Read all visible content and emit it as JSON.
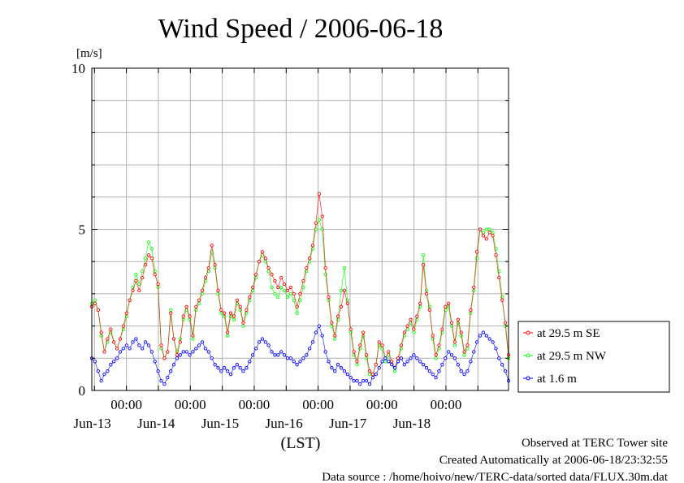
{
  "chart_data": {
    "type": "line",
    "title": "Wind Speed / 2006-06-18",
    "ylabel": "[m/s]",
    "xlabel": "(LST)",
    "ylim": [
      0,
      10
    ],
    "yticks": [
      "0",
      "5",
      "10"
    ],
    "xlim": [
      "2006-06-12T11:00",
      "2006-06-18T23:30"
    ],
    "x_time_ticks": [
      {
        "time": "2006-06-13T00:00",
        "label": "00:00",
        "day": "Jun-13"
      },
      {
        "time": "2006-06-14T00:00",
        "label": "00:00",
        "day": "Jun-14"
      },
      {
        "time": "2006-06-15T00:00",
        "label": "00:00",
        "day": "Jun-15"
      },
      {
        "time": "2006-06-16T00:00",
        "label": "00:00",
        "day": "Jun-16"
      },
      {
        "time": "2006-06-17T00:00",
        "label": "00:00",
        "day": "Jun-17"
      },
      {
        "time": "2006-06-18T00:00",
        "label": "00:00",
        "day": "Jun-18"
      }
    ],
    "grid": true,
    "legend_position": "right",
    "sample_interval": "hourly (approximate)",
    "series": [
      {
        "name": "at 29.5 m SE",
        "color": "#ff0000",
        "values": [
          2.6,
          2.7,
          2.5,
          1.8,
          1.2,
          1.6,
          1.9,
          1.5,
          1.3,
          1.6,
          2.0,
          2.4,
          2.8,
          3.1,
          3.4,
          3.1,
          3.5,
          3.9,
          4.2,
          4.1,
          3.6,
          3.3,
          1.4,
          1.0,
          1.2,
          2.4,
          1.6,
          1.1,
          1.5,
          2.3,
          2.6,
          2.3,
          1.7,
          2.6,
          2.8,
          3.1,
          3.5,
          3.8,
          4.5,
          3.9,
          3.1,
          2.5,
          2.4,
          1.8,
          2.4,
          2.3,
          2.8,
          2.6,
          2.1,
          2.5,
          2.9,
          3.2,
          3.6,
          4.0,
          4.3,
          4.1,
          3.8,
          3.6,
          3.4,
          3.2,
          3.5,
          3.3,
          3.1,
          3.2,
          3.0,
          2.6,
          3.0,
          3.4,
          3.8,
          4.1,
          4.5,
          5.2,
          6.1,
          5.4,
          3.8,
          2.9,
          2.1,
          1.7,
          2.3,
          2.6,
          3.1,
          2.7,
          1.9,
          1.2,
          0.9,
          1.4,
          1.8,
          1.1,
          0.6,
          0.5,
          0.8,
          1.5,
          1.4,
          1.0,
          1.2,
          0.9,
          0.7,
          1.0,
          1.4,
          1.8,
          2.0,
          2.2,
          1.9,
          2.3,
          2.7,
          3.9,
          3.0,
          2.5,
          1.7,
          1.1,
          1.4,
          1.9,
          2.6,
          2.7,
          2.1,
          1.5,
          2.2,
          1.8,
          1.2,
          1.4,
          2.5,
          3.2,
          4.3,
          5.0,
          4.8,
          4.7,
          4.9,
          4.8,
          4.2,
          3.5,
          2.8,
          2.1,
          1.1
        ]
      },
      {
        "name": "at 29.5 m NW",
        "color": "#00ff00",
        "values": [
          2.7,
          2.8,
          2.5,
          1.7,
          1.2,
          1.5,
          1.8,
          1.5,
          1.3,
          1.6,
          1.9,
          2.3,
          2.8,
          3.2,
          3.6,
          3.3,
          3.7,
          4.1,
          4.6,
          4.4,
          3.7,
          3.2,
          1.3,
          1.0,
          1.2,
          2.5,
          1.6,
          1.2,
          1.6,
          2.2,
          2.5,
          2.2,
          1.6,
          2.5,
          2.7,
          3.0,
          3.4,
          3.7,
          4.3,
          3.8,
          3.0,
          2.4,
          2.3,
          1.7,
          2.3,
          2.2,
          2.7,
          2.5,
          2.0,
          2.4,
          2.8,
          3.1,
          3.5,
          4.0,
          4.2,
          4.0,
          3.7,
          3.2,
          3.0,
          2.9,
          3.2,
          3.1,
          2.9,
          3.0,
          2.8,
          2.4,
          2.8,
          3.2,
          3.7,
          4.0,
          4.4,
          5.0,
          5.3,
          5.0,
          3.6,
          2.8,
          2.0,
          1.6,
          2.2,
          3.1,
          3.8,
          2.8,
          1.8,
          1.1,
          0.8,
          1.3,
          1.7,
          1.0,
          0.5,
          0.5,
          0.8,
          1.4,
          1.3,
          0.9,
          1.1,
          0.8,
          0.6,
          0.9,
          1.3,
          1.7,
          1.9,
          2.1,
          1.8,
          2.2,
          2.6,
          4.2,
          3.1,
          2.6,
          1.6,
          1.0,
          1.3,
          1.8,
          2.5,
          2.6,
          2.0,
          1.4,
          2.1,
          1.7,
          1.1,
          1.3,
          2.4,
          3.1,
          4.1,
          5.0,
          4.9,
          5.0,
          5.0,
          4.9,
          4.4,
          3.7,
          2.9,
          2.0,
          1.0
        ]
      },
      {
        "name": "at 1.6 m",
        "color": "#0000ff",
        "values": [
          1.0,
          0.9,
          0.6,
          0.3,
          0.5,
          0.6,
          0.8,
          0.9,
          1.0,
          1.2,
          1.3,
          1.4,
          1.3,
          1.5,
          1.6,
          1.4,
          1.3,
          1.5,
          1.4,
          1.2,
          0.9,
          0.6,
          0.3,
          0.2,
          0.4,
          0.6,
          0.8,
          1.0,
          1.1,
          1.2,
          1.2,
          1.1,
          1.2,
          1.3,
          1.4,
          1.5,
          1.3,
          1.2,
          1.0,
          0.8,
          0.7,
          0.6,
          0.7,
          0.6,
          0.5,
          0.7,
          0.8,
          0.7,
          0.6,
          0.7,
          0.9,
          1.1,
          1.3,
          1.5,
          1.6,
          1.5,
          1.4,
          1.2,
          1.1,
          1.1,
          1.2,
          1.1,
          1.0,
          1.0,
          0.9,
          0.8,
          0.9,
          1.0,
          1.1,
          1.3,
          1.5,
          1.8,
          2.0,
          1.7,
          1.2,
          0.9,
          0.7,
          0.6,
          0.8,
          0.7,
          0.6,
          0.5,
          0.4,
          0.3,
          0.3,
          0.2,
          0.3,
          0.3,
          0.2,
          0.4,
          0.5,
          0.7,
          0.9,
          1.0,
          0.9,
          0.8,
          0.7,
          0.9,
          1.0,
          0.8,
          0.9,
          1.0,
          1.1,
          1.0,
          0.9,
          0.8,
          0.7,
          0.6,
          0.5,
          0.4,
          0.6,
          0.8,
          1.0,
          1.2,
          1.1,
          1.0,
          0.8,
          0.6,
          0.5,
          0.6,
          0.9,
          1.2,
          1.5,
          1.7,
          1.8,
          1.7,
          1.6,
          1.5,
          1.3,
          1.0,
          0.8,
          0.6,
          0.3
        ]
      }
    ]
  },
  "footer": {
    "line1": "Observed at TERC Tower site",
    "line2": "Created Automatically at 2006-06-18/23:32:55",
    "line3": "Data source : /home/hoivo/new/TERC-data/sorted  data/FLUX.30m.dat"
  }
}
